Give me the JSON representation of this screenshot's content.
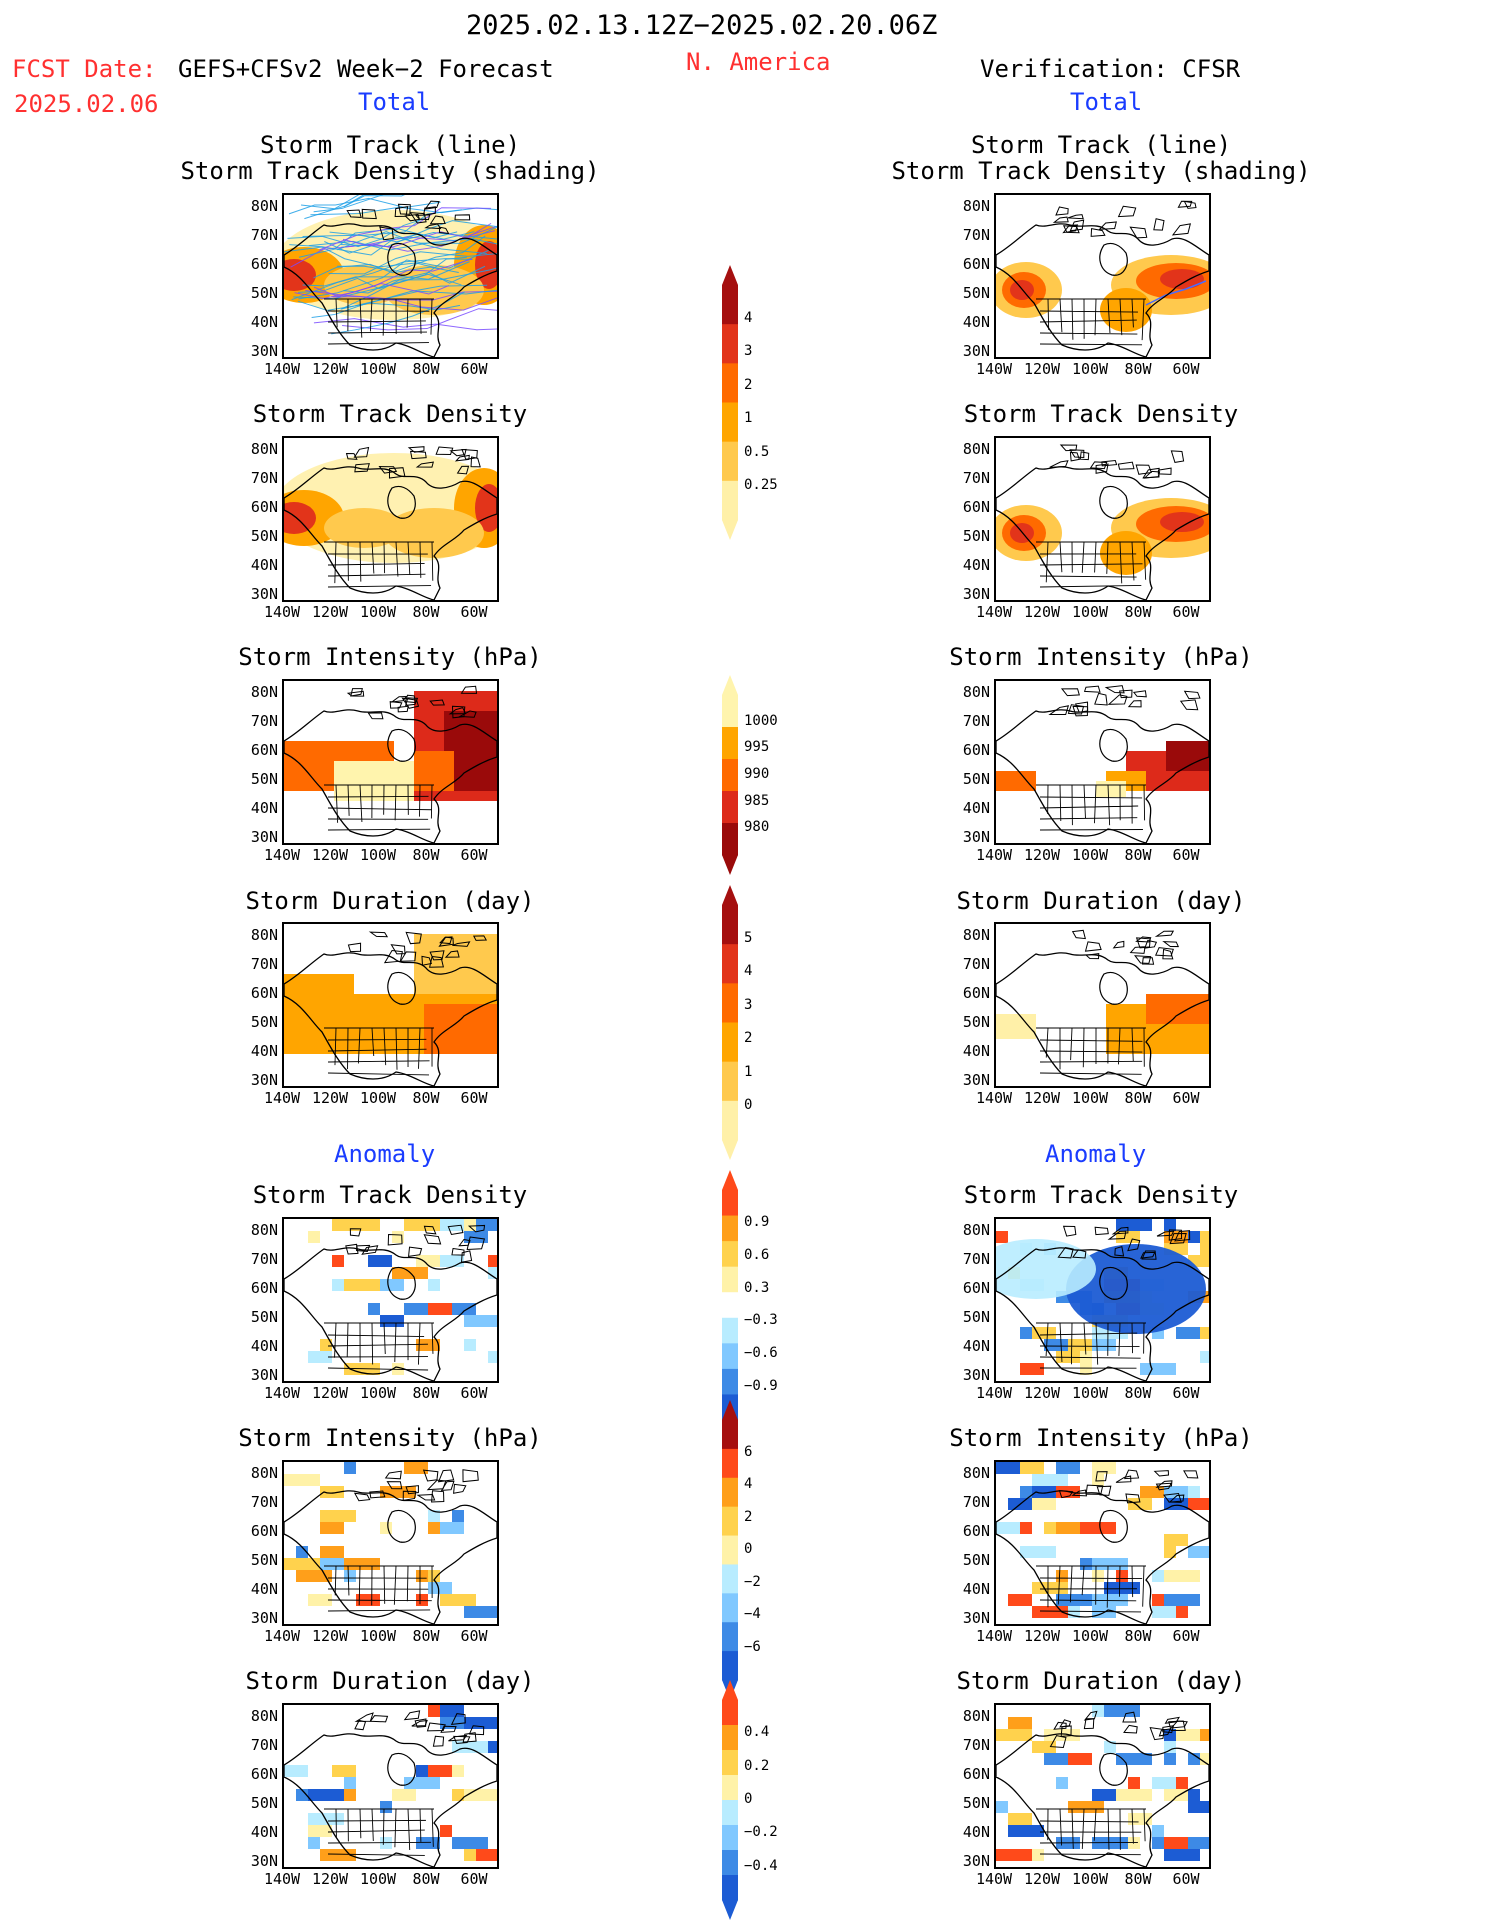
{
  "header": {
    "period": "2025.02.13.12Z−2025.02.20.06Z",
    "fcst_date_label": "FCST Date:",
    "fcst_model": "GEFS+CFSv2 Week−2 Forecast",
    "fcst_date": "2025.02.06",
    "region": "N. America",
    "verification": "Verification: CFSR",
    "left_total": "Total",
    "right_total": "Total",
    "left_anomaly": "Anomaly",
    "right_anomaly": "Anomaly"
  },
  "panels": {
    "p1": {
      "t1": "Storm Track (line)",
      "t2": "Storm Track Density (shading)"
    },
    "p2": {
      "t1": "Storm Track Density"
    },
    "p3": {
      "t1": "Storm Intensity (hPa)"
    },
    "p4": {
      "t1": "Storm Duration (day)"
    },
    "p5": {
      "t1": "Storm Track Density"
    },
    "p6": {
      "t1": "Storm Intensity (hPa)"
    },
    "p7": {
      "t1": "Storm Duration (day)"
    }
  },
  "axes": {
    "lat": [
      "80N",
      "70N",
      "60N",
      "50N",
      "40N",
      "30N"
    ],
    "lon": [
      "140W",
      "120W",
      "100W",
      "80W",
      "60W"
    ]
  },
  "colorbars": {
    "density_total": {
      "labels": [
        "4",
        "3",
        "2",
        "1",
        "0.5",
        "0.25"
      ],
      "colors": [
        "#a50f0f",
        "#e2341a",
        "#ff6a00",
        "#ffa500",
        "#ffc94d",
        "#fff0a8"
      ]
    },
    "intensity_total": {
      "labels": [
        "1000",
        "995",
        "990",
        "985",
        "980"
      ],
      "colors": [
        "#fff4ad",
        "#ffa500",
        "#ff6a00",
        "#dd2a1a",
        "#9a0a0a"
      ]
    },
    "duration_total": {
      "labels": [
        "5",
        "4",
        "3",
        "2",
        "1",
        "0"
      ],
      "colors": [
        "#a50f0f",
        "#e2341a",
        "#ff6a00",
        "#ffa500",
        "#ffc94d",
        "#fff0a8"
      ]
    },
    "density_anom": {
      "labels": [
        "0.9",
        "0.6",
        "0.3",
        "−0.3",
        "−0.6",
        "−0.9"
      ],
      "colors": [
        "#ff4a1a",
        "#ff9f1a",
        "#ffd24d",
        "#fff2a8",
        "#ffffff",
        "#b8ecff",
        "#80c8ff",
        "#3d8ae6",
        "#1c5cd4"
      ]
    },
    "intensity_anom": {
      "labels": [
        "6",
        "4",
        "2",
        "0",
        "−2",
        "−4",
        "−6"
      ],
      "colors": [
        "#a50f0f",
        "#ff4a1a",
        "#ff9f1a",
        "#ffd24d",
        "#fff2a8",
        "#b8ecff",
        "#80c8ff",
        "#3d8ae6",
        "#1c5cd4"
      ]
    },
    "duration_anom": {
      "labels": [
        "0.4",
        "0.2",
        "0",
        "−0.2",
        "−0.4"
      ],
      "colors": [
        "#ff4a1a",
        "#ff9f1a",
        "#ffd24d",
        "#fff2a8",
        "#b8ecff",
        "#80c8ff",
        "#3d8ae6",
        "#1c5cd4"
      ]
    }
  },
  "colors": {
    "title_red": "#ff3030",
    "title_blue": "#1a3cff"
  }
}
